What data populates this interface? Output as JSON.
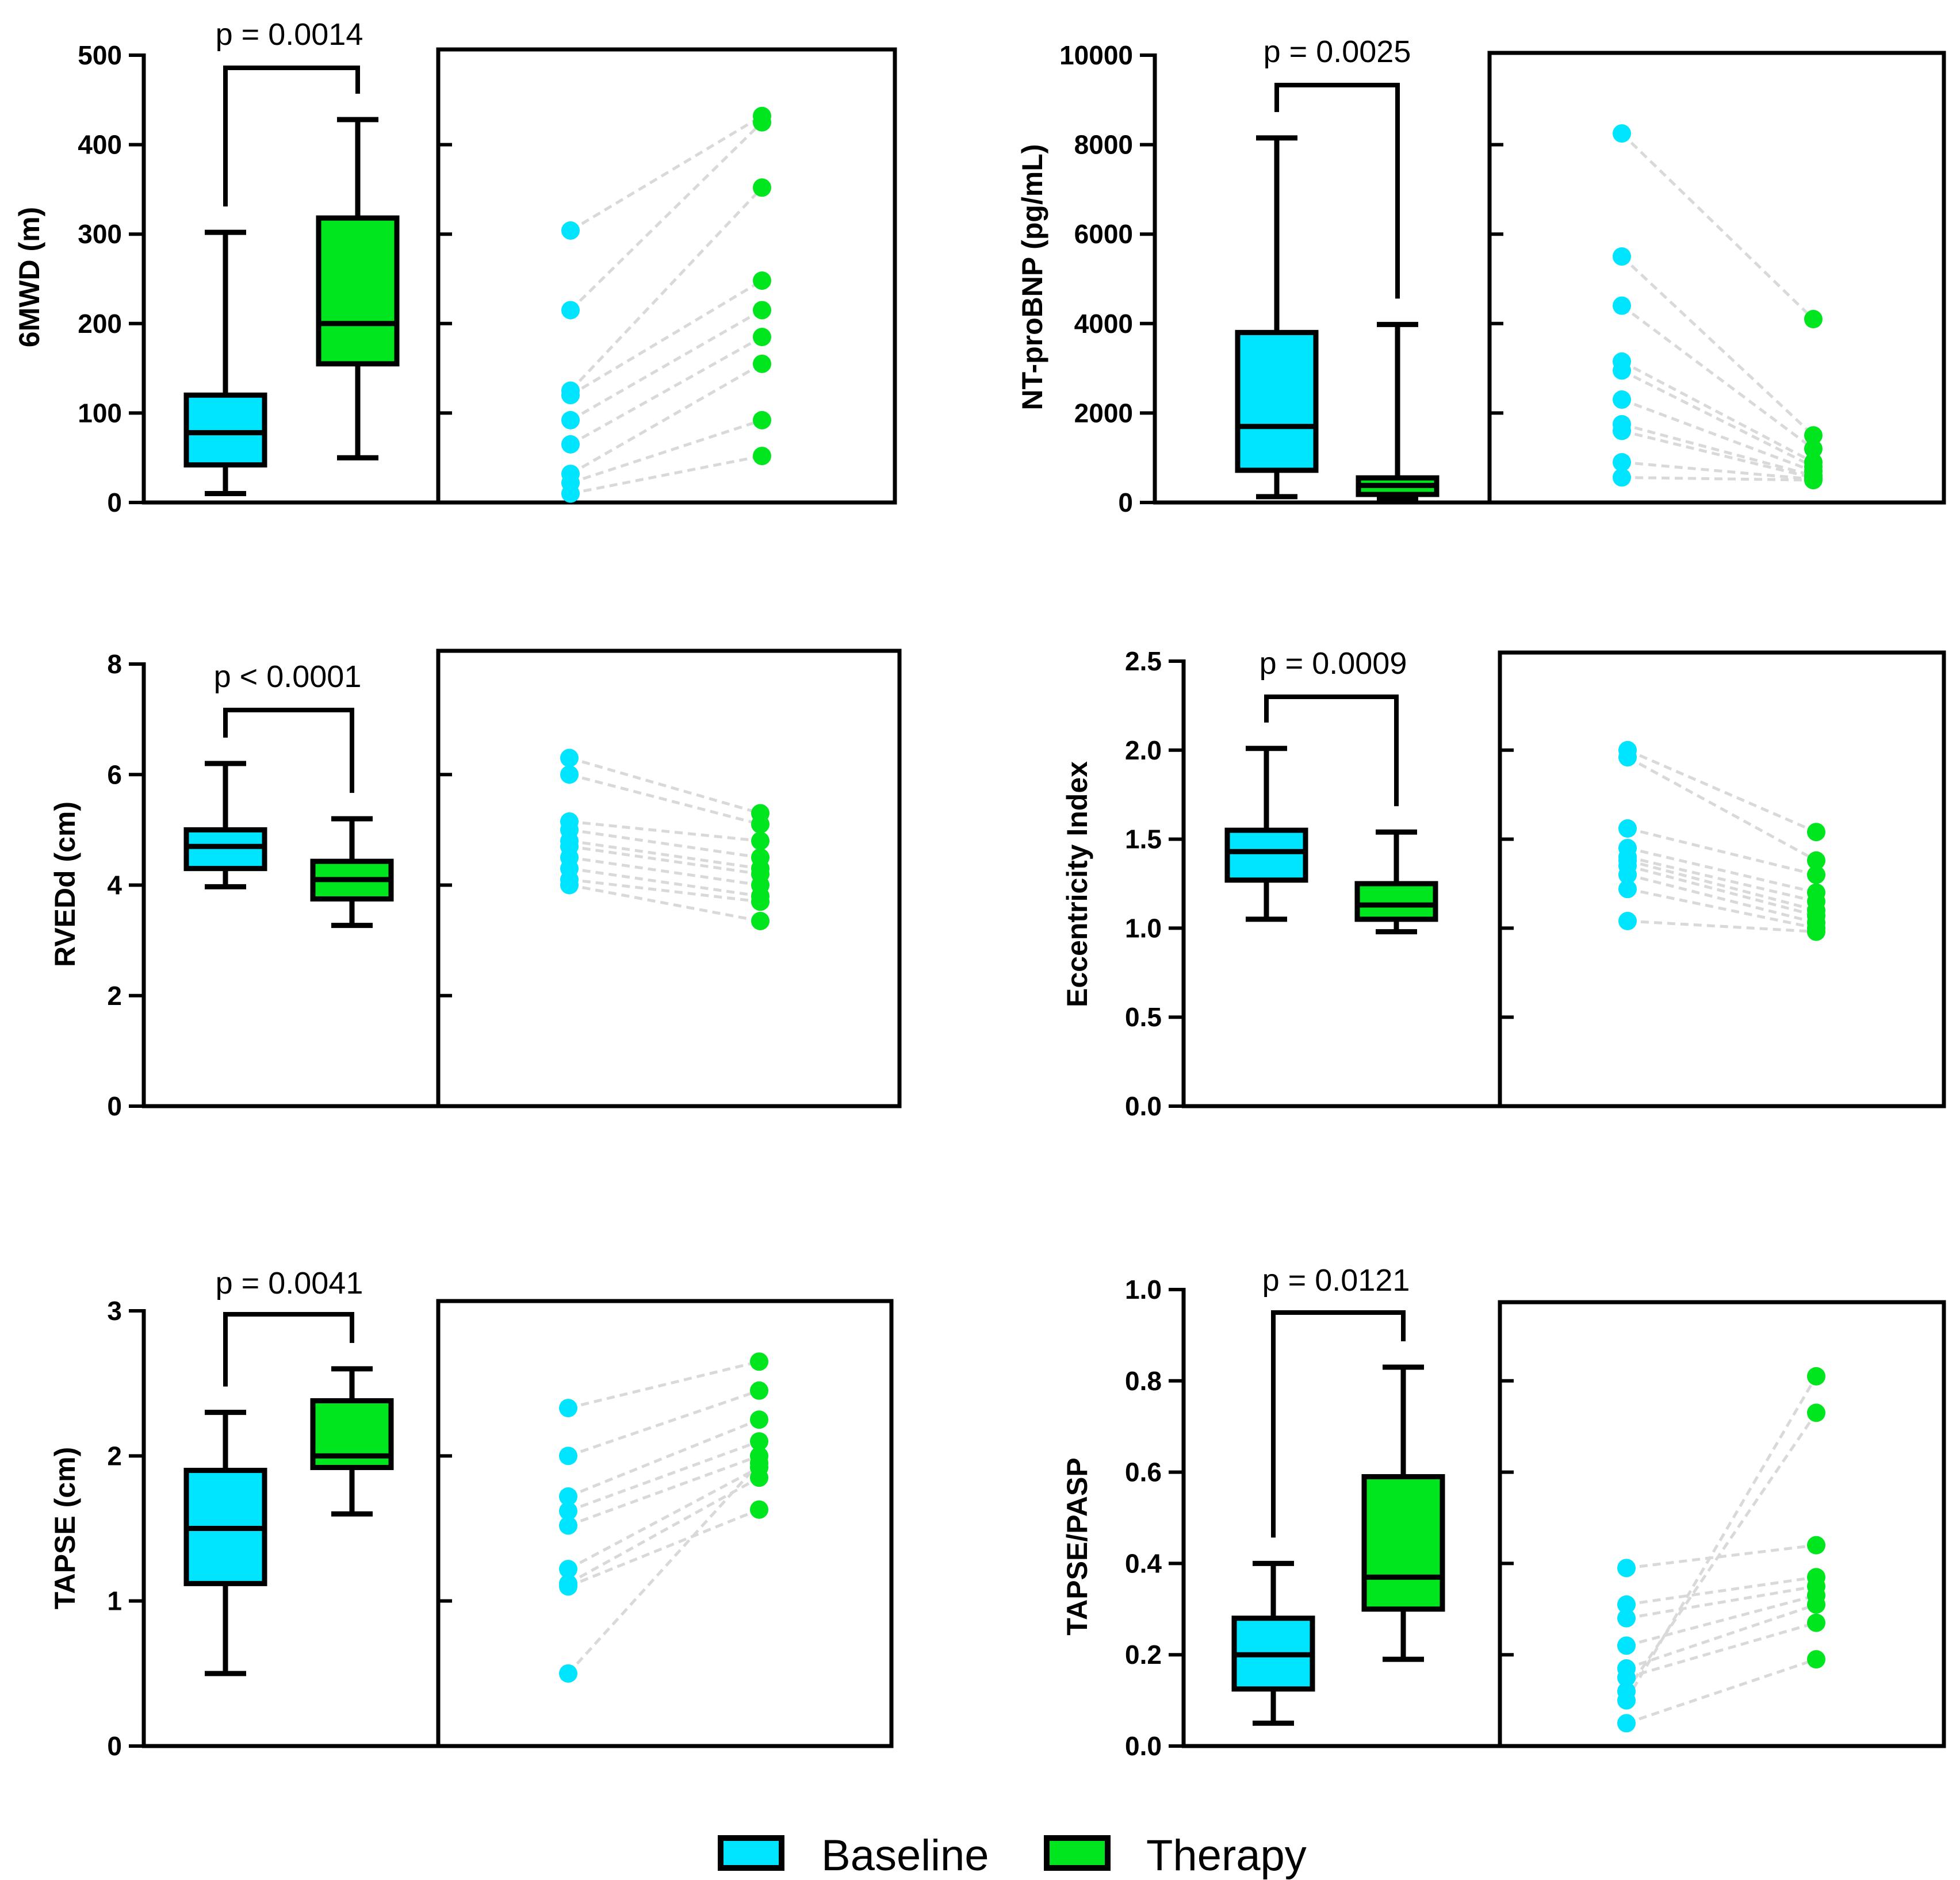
{
  "legend": {
    "baseline_label": "Baseline",
    "therapy_label": "Therapy",
    "baseline_color": "#00E5FF",
    "therapy_color": "#00E61E",
    "line_color": "#D9D9D9",
    "axis_color": "#000000"
  },
  "chart_data": [
    {
      "id": "sixmwd",
      "type": "box-and-paired",
      "ylabel": "6MWD (m)",
      "ylim": [
        0,
        500
      ],
      "yticks": [
        0,
        100,
        200,
        300,
        400,
        500
      ],
      "ytick_labels": [
        "0",
        "100",
        "200",
        "300",
        "400",
        "500"
      ],
      "p_label": "p = 0.0014",
      "boxes": [
        {
          "group": "Baseline",
          "min": 10,
          "q1": 42,
          "median": 78,
          "q3": 120,
          "max": 302
        },
        {
          "group": "Therapy",
          "min": 50,
          "q1": 155,
          "median": 200,
          "q3": 318,
          "max": 428
        }
      ],
      "pairs": [
        [
          304,
          432
        ],
        [
          215,
          425
        ],
        [
          125,
          352
        ],
        [
          120,
          248
        ],
        [
          92,
          215
        ],
        [
          65,
          185
        ],
        [
          32,
          155
        ],
        [
          22,
          92
        ],
        [
          10,
          52
        ]
      ]
    },
    {
      "id": "ntprobnp",
      "type": "box-and-paired",
      "ylabel": "NT-proBNP (pg/mL)",
      "ylim": [
        0,
        10000
      ],
      "yticks": [
        0,
        2000,
        4000,
        6000,
        8000,
        10000
      ],
      "ytick_labels": [
        "0",
        "2000",
        "4000",
        "6000",
        "8000",
        "10000"
      ],
      "p_label": "p = 0.0025",
      "boxes": [
        {
          "group": "Baseline",
          "min": 130,
          "q1": 720,
          "median": 1700,
          "q3": 3800,
          "max": 8150
        },
        {
          "group": "Therapy",
          "min": 100,
          "q1": 180,
          "median": 380,
          "q3": 550,
          "max": 3980
        }
      ],
      "pairs": [
        [
          8250,
          4100
        ],
        [
          5500,
          1500
        ],
        [
          4400,
          1200
        ],
        [
          3150,
          900
        ],
        [
          2950,
          800
        ],
        [
          2300,
          700
        ],
        [
          1750,
          600
        ],
        [
          1600,
          550
        ],
        [
          900,
          520
        ],
        [
          560,
          500
        ]
      ]
    },
    {
      "id": "rvedd",
      "type": "box-and-paired",
      "ylabel": "RVEDd (cm)",
      "ylim": [
        0,
        8
      ],
      "yticks": [
        0,
        2,
        4,
        6,
        8
      ],
      "ytick_labels": [
        "0",
        "2",
        "4",
        "6",
        "8"
      ],
      "p_label": "p < 0.0001",
      "boxes": [
        {
          "group": "Baseline",
          "min": 3.97,
          "q1": 4.3,
          "median": 4.7,
          "q3": 5.0,
          "max": 6.2
        },
        {
          "group": "Therapy",
          "min": 3.27,
          "q1": 3.75,
          "median": 4.1,
          "q3": 4.43,
          "max": 5.2
        }
      ],
      "pairs": [
        [
          6.3,
          5.3
        ],
        [
          6.0,
          5.1
        ],
        [
          5.15,
          4.8
        ],
        [
          5.0,
          4.5
        ],
        [
          4.8,
          4.3
        ],
        [
          4.7,
          4.2
        ],
        [
          4.5,
          4.0
        ],
        [
          4.3,
          3.8
        ],
        [
          4.1,
          3.7
        ],
        [
          4.0,
          3.35
        ]
      ]
    },
    {
      "id": "eccentricity",
      "type": "box-and-paired",
      "ylabel": "Eccentricity Index",
      "ylim": [
        0,
        2.5
      ],
      "yticks": [
        0,
        0.5,
        1.0,
        1.5,
        2.0,
        2.5
      ],
      "ytick_labels": [
        "0.0",
        "0.5",
        "1.0",
        "1.5",
        "2.0",
        "2.5"
      ],
      "p_label": "p = 0.0009",
      "boxes": [
        {
          "group": "Baseline",
          "min": 1.05,
          "q1": 1.27,
          "median": 1.43,
          "q3": 1.55,
          "max": 2.01
        },
        {
          "group": "Therapy",
          "min": 0.98,
          "q1": 1.05,
          "median": 1.13,
          "q3": 1.25,
          "max": 1.54
        }
      ],
      "pairs": [
        [
          2.0,
          1.54
        ],
        [
          1.96,
          1.38
        ],
        [
          1.56,
          1.3
        ],
        [
          1.45,
          1.2
        ],
        [
          1.4,
          1.15
        ],
        [
          1.38,
          1.1
        ],
        [
          1.35,
          1.07
        ],
        [
          1.3,
          1.03
        ],
        [
          1.22,
          1.0
        ],
        [
          1.04,
          0.98
        ]
      ]
    },
    {
      "id": "tapse",
      "type": "box-and-paired",
      "ylabel": "TAPSE (cm)",
      "ylim": [
        0,
        3
      ],
      "yticks": [
        0,
        1,
        2,
        3
      ],
      "ytick_labels": [
        "0",
        "1",
        "2",
        "3"
      ],
      "p_label": "p = 0.0041",
      "boxes": [
        {
          "group": "Baseline",
          "min": 0.5,
          "q1": 1.12,
          "median": 1.5,
          "q3": 1.9,
          "max": 2.3
        },
        {
          "group": "Therapy",
          "min": 1.6,
          "q1": 1.92,
          "median": 2.0,
          "q3": 2.38,
          "max": 2.6
        }
      ],
      "pairs": [
        [
          2.33,
          2.65
        ],
        [
          2.0,
          2.45
        ],
        [
          1.72,
          2.25
        ],
        [
          1.62,
          2.1
        ],
        [
          1.52,
          2.0
        ],
        [
          1.22,
          1.92
        ],
        [
          1.12,
          1.85
        ],
        [
          1.1,
          1.63
        ],
        [
          0.5,
          1.95
        ]
      ]
    },
    {
      "id": "tapse_pasp",
      "type": "box-and-paired",
      "ylabel": "TAPSE/PASP",
      "ylim": [
        0,
        1.0
      ],
      "yticks": [
        0,
        0.2,
        0.4,
        0.6,
        0.8,
        1.0
      ],
      "ytick_labels": [
        "0.0",
        "0.2",
        "0.4",
        "0.6",
        "0.8",
        "1.0"
      ],
      "p_label": "p = 0.0121",
      "boxes": [
        {
          "group": "Baseline",
          "min": 0.05,
          "q1": 0.125,
          "median": 0.2,
          "q3": 0.28,
          "max": 0.4
        },
        {
          "group": "Therapy",
          "min": 0.19,
          "q1": 0.3,
          "median": 0.37,
          "q3": 0.59,
          "max": 0.83
        }
      ],
      "pairs": [
        [
          0.39,
          0.44
        ],
        [
          0.31,
          0.37
        ],
        [
          0.28,
          0.35
        ],
        [
          0.22,
          0.33
        ],
        [
          0.17,
          0.31
        ],
        [
          0.15,
          0.27
        ],
        [
          0.12,
          0.73
        ],
        [
          0.1,
          0.81
        ],
        [
          0.05,
          0.19
        ]
      ]
    }
  ]
}
